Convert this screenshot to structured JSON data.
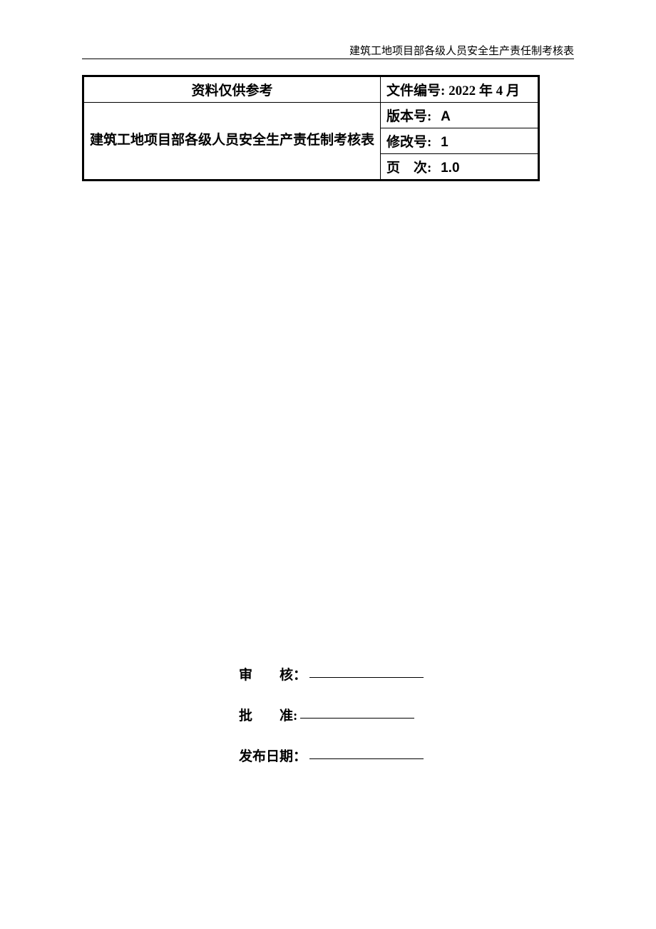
{
  "header": {
    "title": "建筑工地项目部各级人员安全生产责任制考核表"
  },
  "table": {
    "referenceNote": "资料仅供参考",
    "docTitle": "建筑工地项目部各级人员安全生产责任制考核表",
    "fileNumber": {
      "label": "文件编号:",
      "value": "2022 年 4 月"
    },
    "version": {
      "label": "版本号:",
      "value": "A"
    },
    "revision": {
      "label": "修改号:",
      "value": "1"
    },
    "pageSeq": {
      "label": "页　次:",
      "value": "1.0"
    }
  },
  "signatures": {
    "review": "审　　核：",
    "approve": "批　　准:",
    "publishDate": "发布日期："
  },
  "colors": {
    "text": "#000000",
    "background": "#ffffff",
    "border": "#000000"
  },
  "typography": {
    "headerFontSize": 15,
    "tableFontSize": 19,
    "signatureFontSize": 19,
    "fontFamily": "SimSun"
  }
}
